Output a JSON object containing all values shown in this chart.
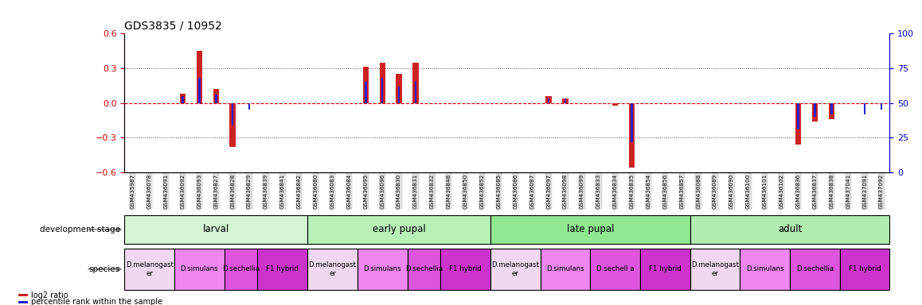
{
  "title": "GDS3835 / 10952",
  "samples": [
    "GSM435987",
    "GSM436078",
    "GSM436091",
    "GSM436092",
    "GSM436093",
    "GSM436827",
    "GSM436828",
    "GSM436829",
    "GSM436839",
    "GSM436841",
    "GSM436842",
    "GSM436080",
    "GSM436083",
    "GSM436084",
    "GSM436095",
    "GSM436096",
    "GSM436830",
    "GSM436831",
    "GSM436832",
    "GSM436848",
    "GSM436850",
    "GSM436852",
    "GSM436085",
    "GSM436086",
    "GSM436087",
    "GSM436097",
    "GSM436098",
    "GSM436099",
    "GSM436833",
    "GSM436834",
    "GSM436835",
    "GSM436854",
    "GSM436856",
    "GSM436857",
    "GSM436088",
    "GSM436089",
    "GSM436090",
    "GSM436100",
    "GSM436101",
    "GSM436102",
    "GSM436836",
    "GSM436837",
    "GSM436838",
    "GSM437041",
    "GSM437091",
    "GSM437092"
  ],
  "log2_ratio": [
    0.0,
    0.0,
    0.0,
    0.08,
    0.45,
    0.12,
    -0.38,
    0.0,
    0.0,
    0.0,
    0.0,
    0.0,
    0.0,
    0.0,
    0.31,
    0.35,
    0.25,
    0.35,
    0.0,
    0.0,
    0.0,
    0.0,
    0.0,
    0.0,
    0.0,
    0.06,
    0.04,
    0.0,
    0.0,
    -0.02,
    -0.56,
    0.0,
    0.0,
    0.0,
    0.0,
    0.0,
    0.0,
    0.0,
    0.0,
    0.0,
    -0.36,
    -0.16,
    -0.14,
    0.0,
    0.0,
    0.0
  ],
  "percentile": [
    50,
    50,
    50,
    55,
    68,
    56,
    34,
    45,
    50,
    50,
    50,
    50,
    50,
    50,
    65,
    68,
    62,
    66,
    50,
    50,
    50,
    50,
    50,
    50,
    50,
    53,
    53,
    50,
    50,
    49,
    22,
    50,
    50,
    50,
    50,
    50,
    50,
    50,
    50,
    50,
    31,
    40,
    42,
    50,
    42,
    45
  ],
  "ylim_left": [
    -0.6,
    0.6
  ],
  "ylim_right": [
    0,
    100
  ],
  "yticks_left": [
    -0.6,
    -0.3,
    0.0,
    0.3,
    0.6
  ],
  "yticks_right": [
    0,
    25,
    50,
    75,
    100
  ],
  "left_ytick_color": "#cc0000",
  "right_ytick_color": "#0000cc",
  "bar_color_log2": "#cc2222",
  "bar_color_pct": "#2222cc",
  "zero_line_color": "#cc0000",
  "dotted_line_color": "#555555",
  "title_fontsize": 10,
  "development_stages": [
    {
      "label": "larval",
      "start": 0,
      "end": 10,
      "color": "#d4f5d4"
    },
    {
      "label": "early pupal",
      "start": 11,
      "end": 21,
      "color": "#b8f0b8"
    },
    {
      "label": "late pupal",
      "start": 22,
      "end": 33,
      "color": "#90e890"
    },
    {
      "label": "adult",
      "start": 34,
      "end": 45,
      "color": "#b0ecb0"
    }
  ],
  "species_blocks": [
    {
      "label": "D.melanogast\ner",
      "start": 0,
      "end": 2,
      "color": "#f0d8f0"
    },
    {
      "label": "D.simulans",
      "start": 3,
      "end": 5,
      "color": "#ee88ee"
    },
    {
      "label": "D.sechellia",
      "start": 6,
      "end": 7,
      "color": "#dd55dd"
    },
    {
      "label": "F1 hybrid",
      "start": 8,
      "end": 10,
      "color": "#cc33cc"
    },
    {
      "label": "D.melanogast\ner",
      "start": 11,
      "end": 13,
      "color": "#f0d8f0"
    },
    {
      "label": "D.simulans",
      "start": 14,
      "end": 16,
      "color": "#ee88ee"
    },
    {
      "label": "D.sechellia",
      "start": 17,
      "end": 18,
      "color": "#dd55dd"
    },
    {
      "label": "F1 hybrid",
      "start": 19,
      "end": 21,
      "color": "#cc33cc"
    },
    {
      "label": "D.melanogast\ner",
      "start": 22,
      "end": 24,
      "color": "#f0d8f0"
    },
    {
      "label": "D.simulans",
      "start": 25,
      "end": 27,
      "color": "#ee88ee"
    },
    {
      "label": "D.sechell a",
      "start": 28,
      "end": 30,
      "color": "#dd55dd"
    },
    {
      "label": "F1 hybrid",
      "start": 31,
      "end": 33,
      "color": "#cc33cc"
    },
    {
      "label": "D.melanogast\ner",
      "start": 34,
      "end": 36,
      "color": "#f0d8f0"
    },
    {
      "label": "D.simulans",
      "start": 37,
      "end": 39,
      "color": "#ee88ee"
    },
    {
      "label": "D.sechellia",
      "start": 40,
      "end": 42,
      "color": "#dd55dd"
    },
    {
      "label": "F1 hybrid",
      "start": 43,
      "end": 45,
      "color": "#cc33cc"
    }
  ]
}
